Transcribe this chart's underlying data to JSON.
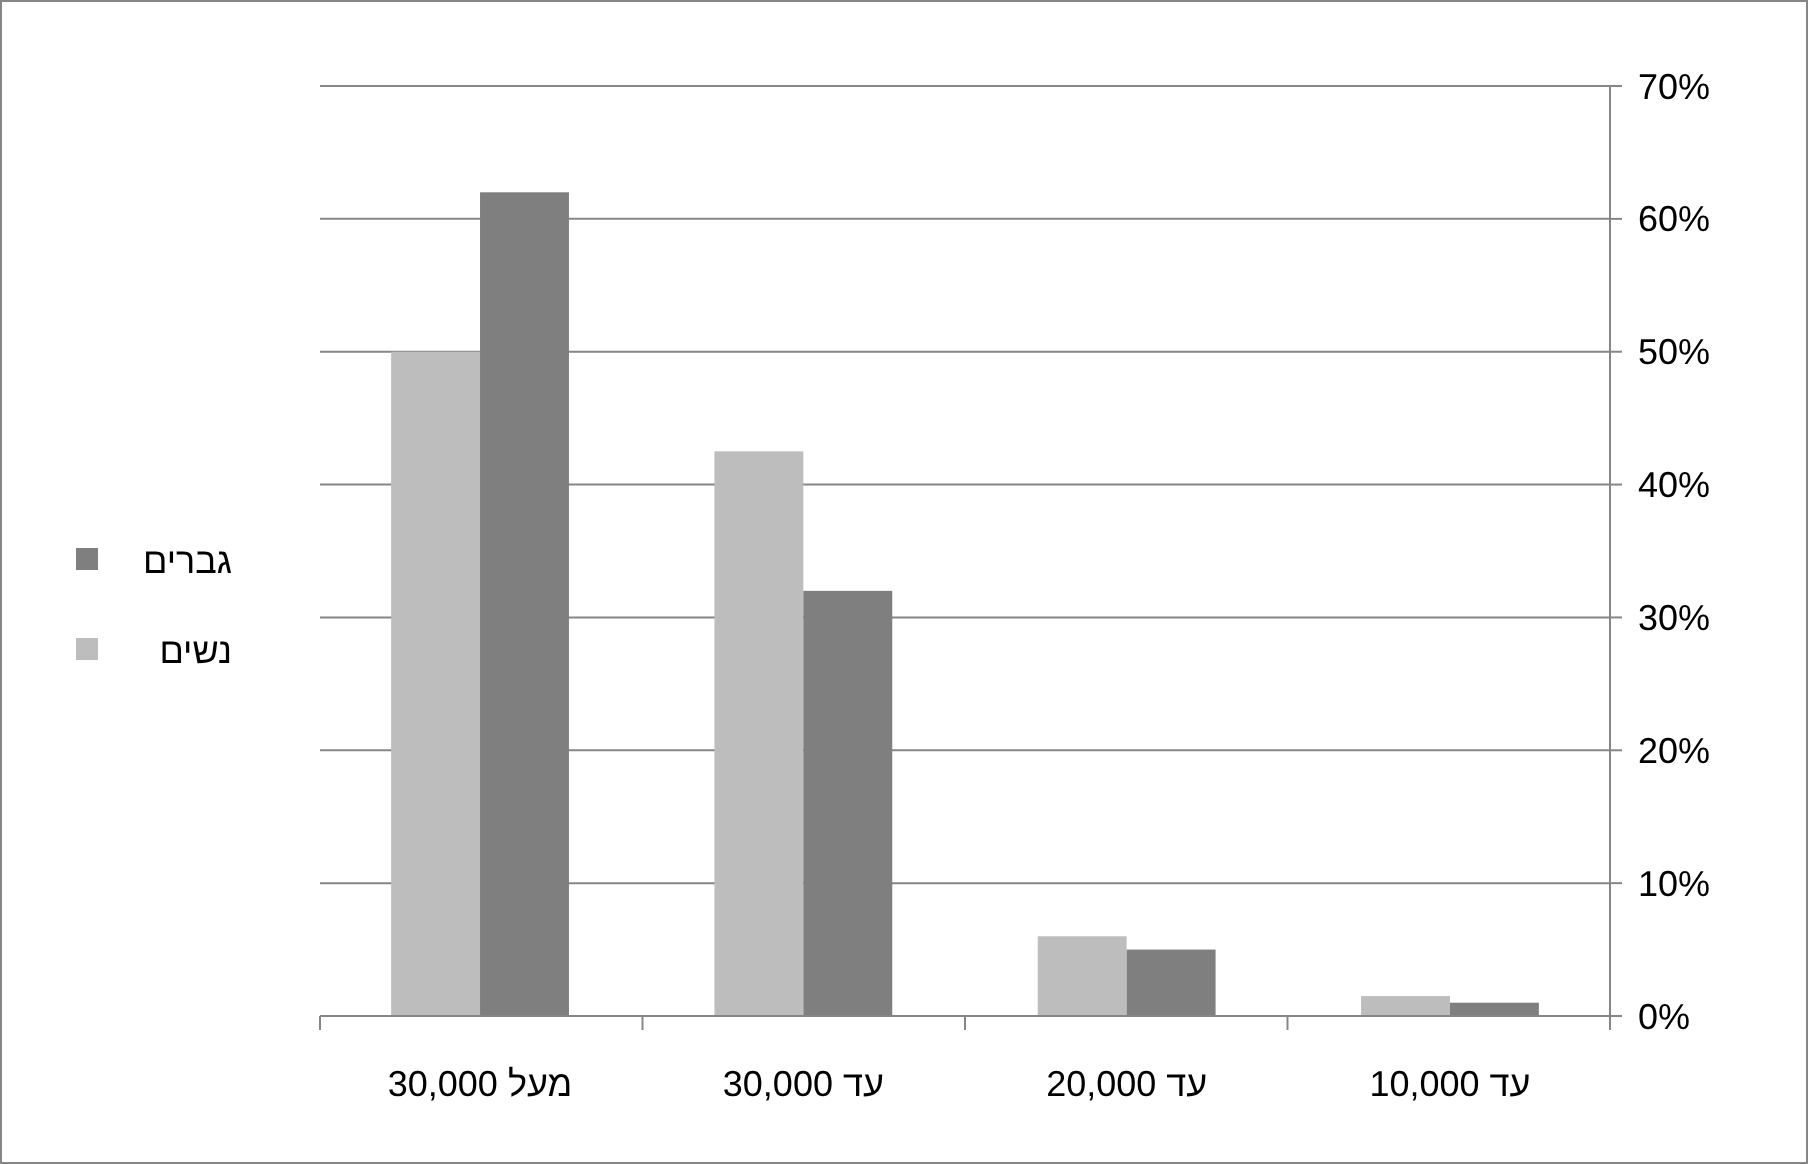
{
  "chart_data": {
    "type": "bar",
    "categories": [
      "מעל 30,000",
      "עד 30,000",
      "עד 20,000",
      "עד 10,000"
    ],
    "series": [
      {
        "name": "נשים",
        "color": "#bdbdbd",
        "values": [
          50,
          42.5,
          6,
          1.5
        ]
      },
      {
        "name": "גברים",
        "color": "#7f7f7f",
        "values": [
          62,
          32,
          5,
          1
        ]
      }
    ],
    "ylim": [
      0,
      70
    ],
    "yticks": [
      {
        "value": 0,
        "label": "0%"
      },
      {
        "value": 10,
        "label": "10%"
      },
      {
        "value": 20,
        "label": "20%"
      },
      {
        "value": 30,
        "label": "30%"
      },
      {
        "value": 40,
        "label": "40%"
      },
      {
        "value": 50,
        "label": "50%"
      },
      {
        "value": 60,
        "label": "60%"
      },
      {
        "value": 70,
        "label": "70%"
      }
    ],
    "grid": "y",
    "legend": "left"
  }
}
